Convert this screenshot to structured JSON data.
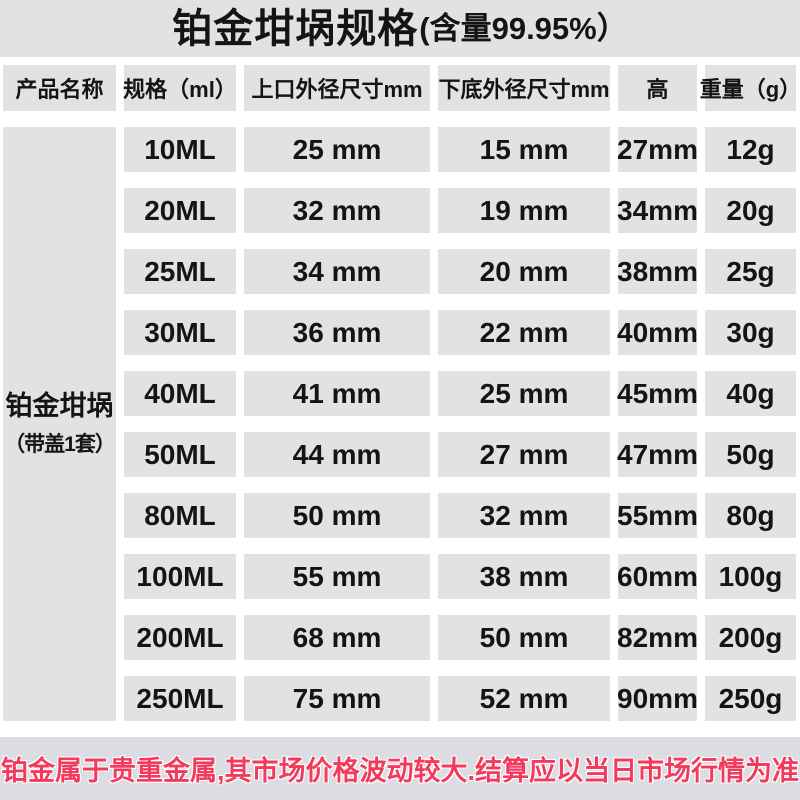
{
  "title": {
    "main": "铂金坩埚规格",
    "sub": "(含量99.95%）"
  },
  "table": {
    "columns": [
      "产品名称",
      "规格（ml）",
      "上口外径尺寸mm",
      "下底外径尺寸mm",
      "高",
      "重量（g）"
    ],
    "product": {
      "name": "铂金坩埚",
      "note": "（带盖1套）"
    },
    "rows": [
      {
        "spec": "10ML",
        "top_diameter": "25 mm",
        "bottom_diameter": "15 mm",
        "height": "27mm",
        "weight": "12g"
      },
      {
        "spec": "20ML",
        "top_diameter": "32 mm",
        "bottom_diameter": "19 mm",
        "height": "34mm",
        "weight": "20g"
      },
      {
        "spec": "25ML",
        "top_diameter": "34 mm",
        "bottom_diameter": "20 mm",
        "height": "38mm",
        "weight": "25g"
      },
      {
        "spec": "30ML",
        "top_diameter": "36 mm",
        "bottom_diameter": "22 mm",
        "height": "40mm",
        "weight": "30g"
      },
      {
        "spec": "40ML",
        "top_diameter": "41 mm",
        "bottom_diameter": "25 mm",
        "height": "45mm",
        "weight": "40g"
      },
      {
        "spec": "50ML",
        "top_diameter": "44 mm",
        "bottom_diameter": "27 mm",
        "height": "47mm",
        "weight": "50g"
      },
      {
        "spec": "80ML",
        "top_diameter": "50 mm",
        "bottom_diameter": "32 mm",
        "height": "55mm",
        "weight": "80g"
      },
      {
        "spec": "100ML",
        "top_diameter": "55 mm",
        "bottom_diameter": "38 mm",
        "height": "60mm",
        "weight": "100g"
      },
      {
        "spec": "200ML",
        "top_diameter": "68 mm",
        "bottom_diameter": "50 mm",
        "height": "82mm",
        "weight": "200g"
      },
      {
        "spec": "250ML",
        "top_diameter": "75 mm",
        "bottom_diameter": "52 mm",
        "height": "90mm",
        "weight": "250g"
      }
    ]
  },
  "footer": {
    "note": "铂金属于贵重金属,其市场价格波动较大.结算应以当日市场行情为准"
  },
  "colors": {
    "page_bg": "#ffffff",
    "panel_bg": "#e2e2e2",
    "footer_bg": "#dcdde3",
    "accent_red": "#f23b5c",
    "text": "#141414"
  }
}
